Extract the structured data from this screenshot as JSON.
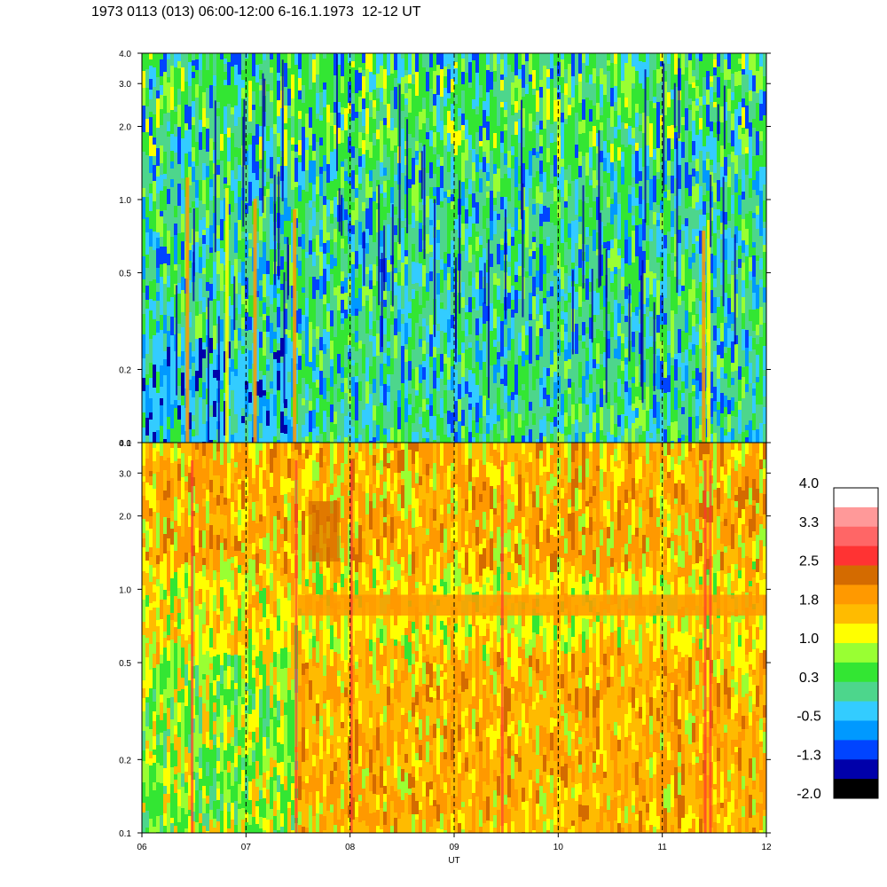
{
  "title": "1973 0113 (013) 06:00-12:00 6-16.1.1973  12-12 UT",
  "chart_data": [
    {
      "type": "heatmap",
      "panel": "upper",
      "x": [
        "06",
        "07",
        "08",
        "09",
        "10",
        "11",
        "12"
      ],
      "xlim": [
        6,
        12
      ],
      "yticks": [
        "0.1",
        "0.2",
        "0.5",
        "1.0",
        "2.0",
        "3.0",
        "4.0"
      ],
      "ylim": [
        0.1,
        4.0
      ],
      "yscale": "log",
      "vertical_dashed_gridlines_at": [
        7,
        8,
        9,
        10,
        11
      ],
      "dominant_levels": "green, blue and cyan (roughly -1.3 to 1.0)"
    },
    {
      "type": "heatmap",
      "panel": "lower",
      "x": [
        "06",
        "07",
        "08",
        "09",
        "10",
        "11",
        "12"
      ],
      "xlim": [
        6,
        12
      ],
      "xlabel": "UT",
      "yticks": [
        "0.1",
        "0.2",
        "0.5",
        "1.0",
        "2.0",
        "3.0",
        "4.0"
      ],
      "ylim": [
        0.1,
        4.0
      ],
      "yscale": "log",
      "vertical_dashed_gridlines_at": [
        7,
        8,
        9,
        10,
        11
      ],
      "dominant_levels": "yellow and orange (roughly 1.0 to 2.2)"
    }
  ],
  "colorbar": {
    "labels": [
      "4.0",
      "3.3",
      "2.5",
      "1.8",
      "1.0",
      "0.3",
      "-0.5",
      "-1.3",
      "-2.0"
    ],
    "colors_top_to_bottom": [
      "#ffffff",
      "#ff9999",
      "#ff6666",
      "#ff3333",
      "#d46b00",
      "#ff9900",
      "#ffbb00",
      "#ffff00",
      "#99ff33",
      "#33e633",
      "#4dd68c",
      "#33ccff",
      "#0099ff",
      "#0044ff",
      "#0000aa",
      "#000000"
    ]
  },
  "palette": {
    "black": "#000000",
    "navy": "#0000aa",
    "blue": "#0044ff",
    "azure": "#0099ff",
    "cyan": "#33ccff",
    "teal": "#4dd68c",
    "green": "#33e633",
    "lime": "#99ff33",
    "yellow": "#ffff00",
    "gold": "#ffbb00",
    "orange": "#ff9900",
    "burnt": "#d46b00",
    "red": "#ff3333"
  }
}
